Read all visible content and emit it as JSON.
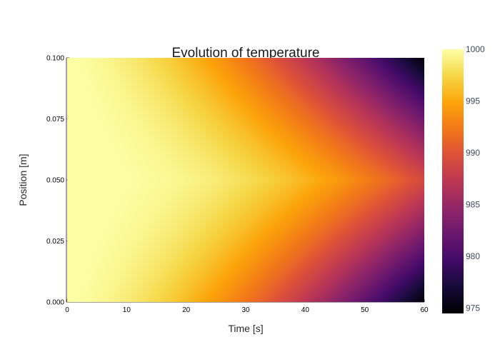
{
  "chart_data": {
    "type": "heatmap",
    "title": "Evolution of temperature",
    "xlabel": "Time [s]",
    "ylabel": "Position [m]",
    "xlim": [
      0,
      60
    ],
    "ylim": [
      0,
      0.1
    ],
    "x_ticks": [
      "0",
      "10",
      "20",
      "30",
      "40",
      "50",
      "60"
    ],
    "x_tick_values": [
      0,
      10,
      20,
      30,
      40,
      50,
      60
    ],
    "y_ticks": [
      "0.000",
      "0.025",
      "0.050",
      "0.075",
      "0.100"
    ],
    "y_tick_values": [
      0,
      0.025,
      0.05,
      0.075,
      0.1
    ],
    "colorbar": {
      "range": [
        974.5,
        1000
      ],
      "ticks": [
        "975",
        "980",
        "985",
        "990",
        "995",
        "1000"
      ],
      "tick_values": [
        975,
        980,
        985,
        990,
        995,
        1000
      ],
      "colorscale": "Inferno"
    },
    "z_model": {
      "description": "Temperature field: initial 1000, boundaries cooled over time",
      "initial_value": 1000,
      "min_value": 974.5
    },
    "grid": false,
    "legend": "none"
  }
}
